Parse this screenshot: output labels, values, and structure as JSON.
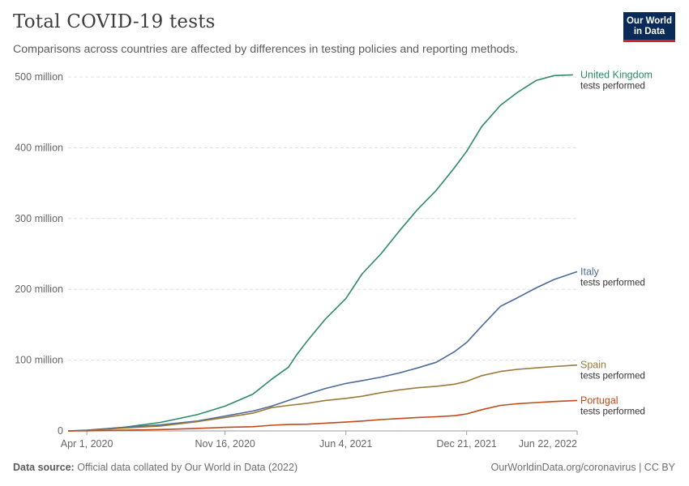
{
  "header": {
    "title": "Total COVID-19 tests",
    "subtitle": "Comparisons across countries are affected by differences in testing policies and reporting methods."
  },
  "logo": {
    "line1": "Our World",
    "line2": "in Data",
    "bg_color": "#0a2a5a",
    "accent_color": "#ce261e"
  },
  "footer": {
    "source_label": "Data source:",
    "source_text": "Official data collated by Our World in Data (2022)",
    "link_text": "OurWorldinData.org/coronavirus | CC BY"
  },
  "chart_data": {
    "type": "line",
    "title": "Total COVID-19 tests",
    "subtitle": "Comparisons across countries are affected by differences in testing policies and reporting methods.",
    "xlabel": "",
    "ylabel": "",
    "x_ticks": [
      {
        "date": "2020-04-01",
        "label": "Apr 1, 2020"
      },
      {
        "date": "2020-11-16",
        "label": "Nov 16, 2020"
      },
      {
        "date": "2021-06-04",
        "label": "Jun 4, 2021"
      },
      {
        "date": "2021-12-21",
        "label": "Dec 21, 2021"
      },
      {
        "date": "2022-06-22",
        "label": "Jun 22, 2022"
      }
    ],
    "xlim": [
      "2020-03-01",
      "2022-06-22"
    ],
    "y_ticks": [
      {
        "value": 0,
        "label": "0"
      },
      {
        "value": 100000000,
        "label": "100 million"
      },
      {
        "value": 200000000,
        "label": "200 million"
      },
      {
        "value": 300000000,
        "label": "300 million"
      },
      {
        "value": 400000000,
        "label": "400 million"
      },
      {
        "value": 500000000,
        "label": "500 million"
      }
    ],
    "ylim": [
      0,
      500000000
    ],
    "grid": "horizontal dashed",
    "legend": "inline labels at line ends (right)",
    "series": [
      {
        "name": "United Kingdom",
        "sublabel": "tests performed",
        "color": "#2f8a6a",
        "points": [
          [
            "2020-03-01",
            0
          ],
          [
            "2020-04-01",
            1000000
          ],
          [
            "2020-06-01",
            5000000
          ],
          [
            "2020-08-01",
            12000000
          ],
          [
            "2020-10-01",
            23000000
          ],
          [
            "2020-11-16",
            35000000
          ],
          [
            "2021-01-01",
            52000000
          ],
          [
            "2021-02-01",
            73000000
          ],
          [
            "2021-03-01",
            90000000
          ],
          [
            "2021-03-15",
            108000000
          ],
          [
            "2021-04-01",
            127000000
          ],
          [
            "2021-05-01",
            158000000
          ],
          [
            "2021-06-04",
            187000000
          ],
          [
            "2021-07-01",
            222000000
          ],
          [
            "2021-08-01",
            250000000
          ],
          [
            "2021-09-01",
            283000000
          ],
          [
            "2021-10-01",
            313000000
          ],
          [
            "2021-11-01",
            340000000
          ],
          [
            "2021-12-01",
            372000000
          ],
          [
            "2021-12-21",
            395000000
          ],
          [
            "2022-01-15",
            430000000
          ],
          [
            "2022-02-15",
            460000000
          ],
          [
            "2022-03-15",
            478000000
          ],
          [
            "2022-04-15",
            495000000
          ],
          [
            "2022-05-15",
            502000000
          ],
          [
            "2022-06-15",
            503000000
          ]
        ]
      },
      {
        "name": "Italy",
        "sublabel": "tests performed",
        "color": "#4c6a9c",
        "points": [
          [
            "2020-03-01",
            0
          ],
          [
            "2020-04-01",
            800000
          ],
          [
            "2020-06-01",
            5000000
          ],
          [
            "2020-08-01",
            8500000
          ],
          [
            "2020-10-01",
            14000000
          ],
          [
            "2020-11-16",
            21000000
          ],
          [
            "2021-01-01",
            28000000
          ],
          [
            "2021-02-01",
            35000000
          ],
          [
            "2021-03-01",
            43000000
          ],
          [
            "2021-04-01",
            52000000
          ],
          [
            "2021-05-01",
            60000000
          ],
          [
            "2021-06-04",
            67000000
          ],
          [
            "2021-07-01",
            71000000
          ],
          [
            "2021-08-01",
            76000000
          ],
          [
            "2021-09-01",
            82000000
          ],
          [
            "2021-10-01",
            89000000
          ],
          [
            "2021-11-01",
            97000000
          ],
          [
            "2021-12-01",
            112000000
          ],
          [
            "2021-12-21",
            125000000
          ],
          [
            "2022-01-15",
            148000000
          ],
          [
            "2022-02-15",
            176000000
          ],
          [
            "2022-03-15",
            188000000
          ],
          [
            "2022-04-15",
            202000000
          ],
          [
            "2022-05-15",
            214000000
          ],
          [
            "2022-06-22",
            225000000
          ]
        ]
      },
      {
        "name": "Spain",
        "sublabel": "tests performed",
        "color": "#9a7a3a",
        "points": [
          [
            "2020-03-01",
            0
          ],
          [
            "2020-04-01",
            600000
          ],
          [
            "2020-06-01",
            4000000
          ],
          [
            "2020-08-01",
            7000000
          ],
          [
            "2020-10-01",
            13000000
          ],
          [
            "2020-11-16",
            19000000
          ],
          [
            "2021-01-01",
            25000000
          ],
          [
            "2021-02-01",
            33000000
          ],
          [
            "2021-03-01",
            36000000
          ],
          [
            "2021-04-01",
            39000000
          ],
          [
            "2021-05-01",
            43000000
          ],
          [
            "2021-06-04",
            46000000
          ],
          [
            "2021-07-01",
            49000000
          ],
          [
            "2021-08-01",
            54000000
          ],
          [
            "2021-09-01",
            58000000
          ],
          [
            "2021-10-01",
            61000000
          ],
          [
            "2021-11-01",
            63000000
          ],
          [
            "2021-12-01",
            66000000
          ],
          [
            "2021-12-21",
            70000000
          ],
          [
            "2022-01-15",
            78000000
          ],
          [
            "2022-02-15",
            84000000
          ],
          [
            "2022-03-15",
            87000000
          ],
          [
            "2022-04-15",
            89000000
          ],
          [
            "2022-05-15",
            91000000
          ],
          [
            "2022-06-22",
            93000000
          ]
        ]
      },
      {
        "name": "Portugal",
        "sublabel": "tests performed",
        "color": "#c04a1a",
        "points": [
          [
            "2020-03-01",
            0
          ],
          [
            "2020-04-01",
            200000
          ],
          [
            "2020-06-01",
            1000000
          ],
          [
            "2020-08-01",
            2000000
          ],
          [
            "2020-10-01",
            3500000
          ],
          [
            "2020-11-16",
            5000000
          ],
          [
            "2021-01-01",
            6000000
          ],
          [
            "2021-02-01",
            8000000
          ],
          [
            "2021-03-01",
            9000000
          ],
          [
            "2021-04-01",
            9500000
          ],
          [
            "2021-05-01",
            11000000
          ],
          [
            "2021-06-04",
            12500000
          ],
          [
            "2021-07-01",
            14000000
          ],
          [
            "2021-08-01",
            16000000
          ],
          [
            "2021-09-01",
            17500000
          ],
          [
            "2021-10-01",
            19000000
          ],
          [
            "2021-11-01",
            20000000
          ],
          [
            "2021-12-01",
            21500000
          ],
          [
            "2021-12-21",
            24000000
          ],
          [
            "2022-01-15",
            30000000
          ],
          [
            "2022-02-15",
            36000000
          ],
          [
            "2022-03-15",
            38500000
          ],
          [
            "2022-04-15",
            40000000
          ],
          [
            "2022-05-15",
            41500000
          ],
          [
            "2022-06-22",
            43000000
          ]
        ]
      }
    ]
  }
}
